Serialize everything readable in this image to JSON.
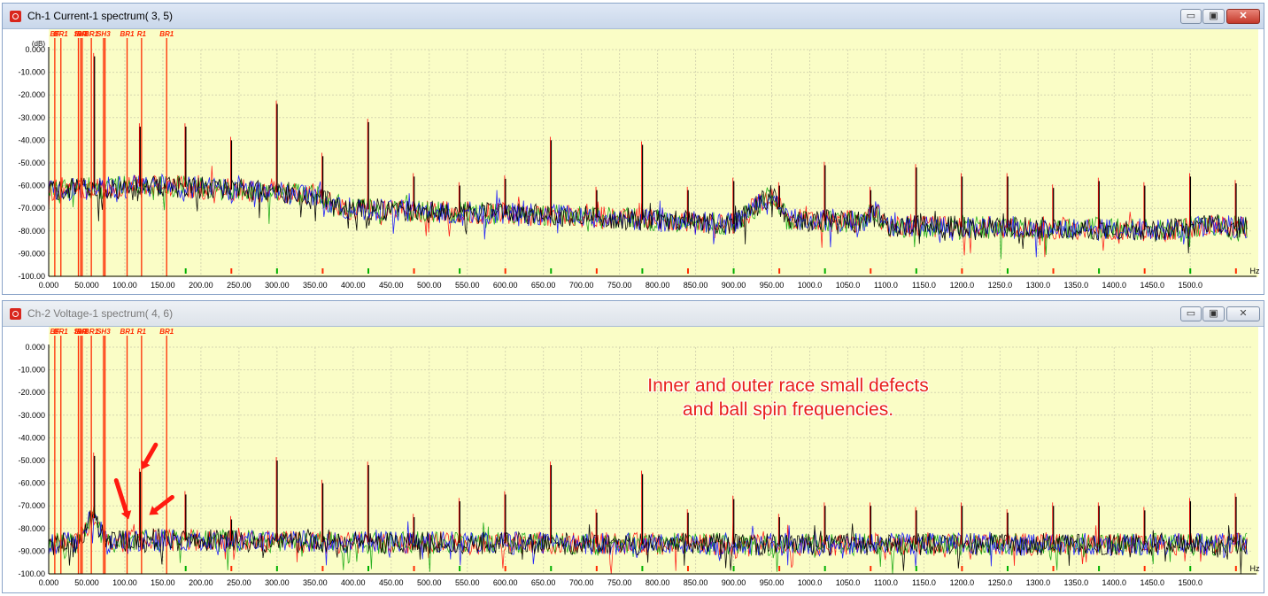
{
  "windows": [
    {
      "title": "Ch-1 Current-1 spectrum( 3, 5)",
      "min_glyph": "▭",
      "max_glyph": "▣",
      "close_glyph": "✕"
    },
    {
      "title": "Ch-2 Voltage-1 spectrum( 4, 6)",
      "min_glyph": "▭",
      "max_glyph": "▣",
      "close_glyph": "✕"
    }
  ],
  "annotation": {
    "line1": "Inner and outer race small defects",
    "line2": "and ball spin frequencies."
  },
  "colors": {
    "plot_bg": "#fafdc6",
    "grid": "#d6d6b0",
    "marker": "#ff2a00",
    "tick_red": "#ff2a00",
    "tick_green": "#00b000",
    "series": [
      "#ff0000",
      "#00a000",
      "#0000ff",
      "#000000"
    ],
    "annotation": "#e8201a"
  },
  "chart_data": [
    {
      "type": "line",
      "title": "Ch-1 Current-1 spectrum( 3, 5)",
      "xlabel": "",
      "ylabel": "",
      "x_unit": "Hz",
      "y_unit_fragment": "(dB)",
      "xlim": [
        0,
        1580
      ],
      "ylim": [
        -100,
        0
      ],
      "grid": true,
      "x_ticks": [
        "0.000",
        "50.000",
        "100.00",
        "150.00",
        "200.00",
        "250.00",
        "300.00",
        "350.00",
        "400.00",
        "450.00",
        "500.00",
        "550.00",
        "600.00",
        "650.00",
        "700.00",
        "750.00",
        "800.00",
        "850.00",
        "900.00",
        "950.00",
        "1000.0",
        "1050.0",
        "1100.0",
        "1150.0",
        "1200.0",
        "1250.0",
        "1300.0",
        "1350.0",
        "1400.0",
        "1450.0",
        "1500.0"
      ],
      "y_ticks": [
        "0.000",
        "-10.000",
        "-20.000",
        "-30.000",
        "-40.000",
        "-50.000",
        "-60.000",
        "-70.000",
        "-80.000",
        "-90.000",
        "-100.00"
      ],
      "markers": [
        {
          "x": 8,
          "label": "BF"
        },
        {
          "x": 16,
          "label": "BR1"
        },
        {
          "x": 39,
          "label": "IR"
        },
        {
          "x": 42,
          "label": "SH3"
        },
        {
          "x": 44,
          "label": "BR"
        },
        {
          "x": 56,
          "label": "BR1"
        },
        {
          "x": 72,
          "label": "SH3"
        },
        {
          "x": 74,
          "label": ""
        },
        {
          "x": 103,
          "label": "BR1"
        },
        {
          "x": 122,
          "label": "R1"
        },
        {
          "x": 155,
          "label": "BR1"
        }
      ],
      "peaks": [
        {
          "x": 60,
          "y": -3
        },
        {
          "x": 120,
          "y": -34
        },
        {
          "x": 180,
          "y": -34
        },
        {
          "x": 240,
          "y": -40
        },
        {
          "x": 300,
          "y": -24
        },
        {
          "x": 360,
          "y": -47
        },
        {
          "x": 420,
          "y": -32
        },
        {
          "x": 480,
          "y": -56
        },
        {
          "x": 540,
          "y": -60
        },
        {
          "x": 600,
          "y": -57
        },
        {
          "x": 660,
          "y": -40
        },
        {
          "x": 720,
          "y": -62
        },
        {
          "x": 780,
          "y": -42
        },
        {
          "x": 840,
          "y": -62
        },
        {
          "x": 900,
          "y": -58
        },
        {
          "x": 960,
          "y": -60
        },
        {
          "x": 1020,
          "y": -51
        },
        {
          "x": 1080,
          "y": -62
        },
        {
          "x": 1140,
          "y": -52
        },
        {
          "x": 1200,
          "y": -56
        },
        {
          "x": 1260,
          "y": -56
        },
        {
          "x": 1320,
          "y": -61
        },
        {
          "x": 1380,
          "y": -58
        },
        {
          "x": 1440,
          "y": -60
        },
        {
          "x": 1500,
          "y": -56
        },
        {
          "x": 1560,
          "y": -59
        }
      ],
      "baseline": [
        [
          0,
          -62
        ],
        [
          150,
          -60
        ],
        [
          350,
          -64
        ],
        [
          380,
          -70
        ],
        [
          650,
          -73
        ],
        [
          900,
          -77
        ],
        [
          950,
          -64
        ],
        [
          970,
          -75
        ],
        [
          1070,
          -76
        ],
        [
          1085,
          -70
        ],
        [
          1100,
          -78
        ],
        [
          1420,
          -79
        ],
        [
          1460,
          -80
        ],
        [
          1530,
          -77
        ],
        [
          1580,
          -79
        ]
      ],
      "noise_band": 5,
      "ticks_bottom": [
        {
          "x": 180,
          "color": "green"
        },
        {
          "x": 240,
          "color": "red"
        },
        {
          "x": 300,
          "color": "green"
        },
        {
          "x": 360,
          "color": "red"
        },
        {
          "x": 420,
          "color": "green"
        },
        {
          "x": 480,
          "color": "red"
        },
        {
          "x": 540,
          "color": "green"
        },
        {
          "x": 600,
          "color": "red"
        },
        {
          "x": 660,
          "color": "green"
        },
        {
          "x": 720,
          "color": "red"
        },
        {
          "x": 780,
          "color": "green"
        },
        {
          "x": 840,
          "color": "red"
        },
        {
          "x": 900,
          "color": "green"
        },
        {
          "x": 960,
          "color": "red"
        },
        {
          "x": 1020,
          "color": "green"
        },
        {
          "x": 1080,
          "color": "red"
        },
        {
          "x": 1140,
          "color": "green"
        },
        {
          "x": 1200,
          "color": "red"
        },
        {
          "x": 1260,
          "color": "green"
        },
        {
          "x": 1320,
          "color": "red"
        },
        {
          "x": 1380,
          "color": "green"
        },
        {
          "x": 1440,
          "color": "red"
        },
        {
          "x": 1500,
          "color": "green"
        },
        {
          "x": 1560,
          "color": "red"
        }
      ]
    },
    {
      "type": "line",
      "title": "Ch-2 Voltage-1 spectrum( 4, 6)",
      "xlabel": "",
      "ylabel": "",
      "x_unit": "Hz",
      "y_unit_fragment": "",
      "xlim": [
        0,
        1580
      ],
      "ylim": [
        -100,
        0
      ],
      "grid": true,
      "x_ticks": [
        "0.000",
        "50.000",
        "100.00",
        "150.00",
        "200.00",
        "250.00",
        "300.00",
        "350.00",
        "400.00",
        "450.00",
        "500.00",
        "550.00",
        "600.00",
        "650.00",
        "700.00",
        "750.00",
        "800.00",
        "850.00",
        "900.00",
        "950.00",
        "1000.0",
        "1050.0",
        "1100.0",
        "1150.0",
        "1200.0",
        "1250.0",
        "1300.0",
        "1350.0",
        "1400.0",
        "1450.0",
        "1500.0"
      ],
      "y_ticks": [
        "0.000",
        "-10.000",
        "-20.000",
        "-30.000",
        "-40.000",
        "-50.000",
        "-60.000",
        "-70.000",
        "-80.000",
        "-90.000",
        "-100.00"
      ],
      "markers": [
        {
          "x": 8,
          "label": "BF"
        },
        {
          "x": 16,
          "label": "BR1"
        },
        {
          "x": 39,
          "label": "IR"
        },
        {
          "x": 42,
          "label": "SH3"
        },
        {
          "x": 44,
          "label": "BR"
        },
        {
          "x": 56,
          "label": "BR1"
        },
        {
          "x": 72,
          "label": "SH3"
        },
        {
          "x": 74,
          "label": ""
        },
        {
          "x": 103,
          "label": "BR1"
        },
        {
          "x": 122,
          "label": "R1"
        },
        {
          "x": 155,
          "label": "BR1"
        }
      ],
      "peaks": [
        {
          "x": 60,
          "y": -48
        },
        {
          "x": 120,
          "y": -55
        },
        {
          "x": 180,
          "y": -65
        },
        {
          "x": 240,
          "y": -76
        },
        {
          "x": 300,
          "y": -50
        },
        {
          "x": 360,
          "y": -60
        },
        {
          "x": 420,
          "y": -52
        },
        {
          "x": 480,
          "y": -75
        },
        {
          "x": 540,
          "y": -68
        },
        {
          "x": 600,
          "y": -65
        },
        {
          "x": 660,
          "y": -52
        },
        {
          "x": 720,
          "y": -73
        },
        {
          "x": 780,
          "y": -56
        },
        {
          "x": 840,
          "y": -73
        },
        {
          "x": 900,
          "y": -67
        },
        {
          "x": 960,
          "y": -75
        },
        {
          "x": 1020,
          "y": -70
        },
        {
          "x": 1080,
          "y": -70
        },
        {
          "x": 1140,
          "y": -72
        },
        {
          "x": 1200,
          "y": -70
        },
        {
          "x": 1260,
          "y": -73
        },
        {
          "x": 1320,
          "y": -70
        },
        {
          "x": 1380,
          "y": -70
        },
        {
          "x": 1440,
          "y": -72
        },
        {
          "x": 1500,
          "y": -68
        },
        {
          "x": 1560,
          "y": -66
        }
      ],
      "baseline": [
        [
          0,
          -87
        ],
        [
          40,
          -86
        ],
        [
          58,
          -74
        ],
        [
          75,
          -86
        ],
        [
          140,
          -85
        ],
        [
          350,
          -86
        ],
        [
          950,
          -87
        ],
        [
          1580,
          -87
        ]
      ],
      "noise_band": 5,
      "ticks_bottom": [
        {
          "x": 180,
          "color": "green"
        },
        {
          "x": 240,
          "color": "red"
        },
        {
          "x": 300,
          "color": "green"
        },
        {
          "x": 360,
          "color": "red"
        },
        {
          "x": 420,
          "color": "green"
        },
        {
          "x": 480,
          "color": "red"
        },
        {
          "x": 540,
          "color": "green"
        },
        {
          "x": 600,
          "color": "red"
        },
        {
          "x": 660,
          "color": "green"
        },
        {
          "x": 720,
          "color": "red"
        },
        {
          "x": 780,
          "color": "green"
        },
        {
          "x": 840,
          "color": "red"
        },
        {
          "x": 900,
          "color": "green"
        },
        {
          "x": 960,
          "color": "red"
        },
        {
          "x": 1020,
          "color": "green"
        },
        {
          "x": 1080,
          "color": "red"
        },
        {
          "x": 1140,
          "color": "green"
        },
        {
          "x": 1200,
          "color": "red"
        },
        {
          "x": 1260,
          "color": "green"
        },
        {
          "x": 1320,
          "color": "red"
        },
        {
          "x": 1380,
          "color": "green"
        },
        {
          "x": 1440,
          "color": "red"
        },
        {
          "x": 1500,
          "color": "green"
        },
        {
          "x": 1560,
          "color": "red"
        }
      ],
      "callout_arrows": [
        {
          "target_x": 105,
          "target_y": -76
        },
        {
          "target_x": 122,
          "target_y": -54
        },
        {
          "target_x": 132,
          "target_y": -74
        }
      ]
    }
  ]
}
